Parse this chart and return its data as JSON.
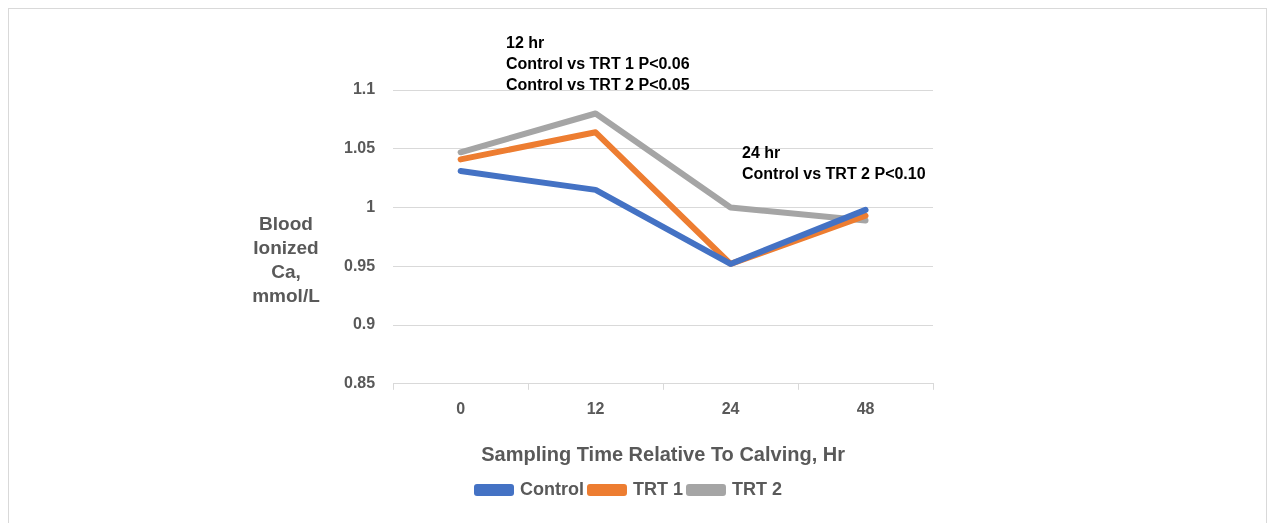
{
  "chart_data": {
    "type": "line",
    "xlabel": "Sampling Time Relative To Calving, Hr",
    "ylabel": "Blood Ionized Ca, mmol/L",
    "categories": [
      "0",
      "12",
      "24",
      "48"
    ],
    "series": [
      {
        "name": "Control",
        "color": "#4472c4",
        "values": [
          1.031,
          1.015,
          0.952,
          0.998
        ]
      },
      {
        "name": "TRT 1",
        "color": "#ed7d31",
        "values": [
          1.041,
          1.064,
          0.952,
          0.993
        ]
      },
      {
        "name": "TRT 2",
        "color": "#a5a5a5",
        "values": [
          1.047,
          1.08,
          1.0,
          0.989
        ]
      }
    ],
    "ylim": [
      0.85,
      1.1
    ],
    "yticks": [
      0.85,
      0.9,
      0.95,
      1,
      1.05,
      1.1
    ],
    "grid": "y",
    "legend": "bottom",
    "marker": "none",
    "line_style": "solid",
    "annotations": [
      "12 hr\nControl vs TRT 1 P<0.06\nControl vs TRT 2 P<0.05",
      "24 hr\nControl vs TRT 2 P<0.10"
    ]
  }
}
